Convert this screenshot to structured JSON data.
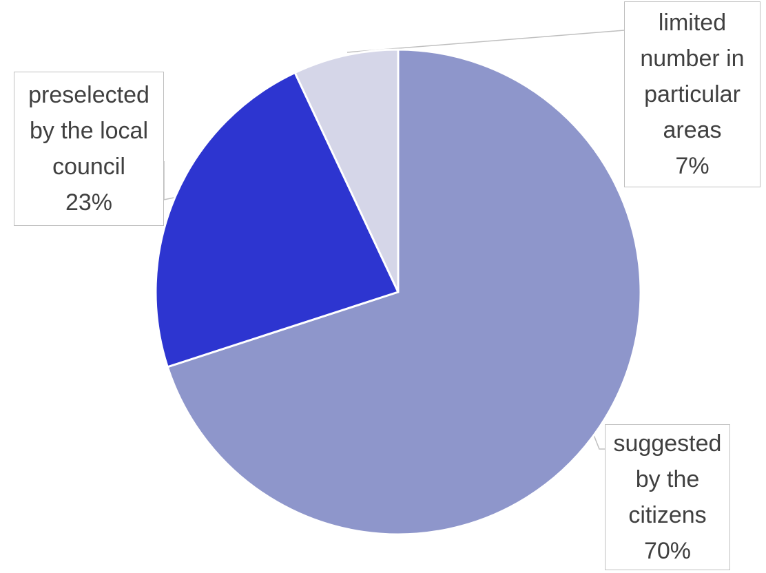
{
  "chart_data": {
    "type": "pie",
    "start_angle_deg": 0,
    "direction": "clockwise",
    "slices": [
      {
        "label_lines": [
          "suggested",
          "by the",
          "citizens"
        ],
        "percent_label": "70%",
        "value": 70,
        "color": "#8e96cb"
      },
      {
        "label_lines": [
          "preselected",
          "by the local",
          "council"
        ],
        "percent_label": "23%",
        "value": 23,
        "color": "#2d35d0"
      },
      {
        "label_lines": [
          "limited",
          "number in",
          "particular",
          "areas"
        ],
        "percent_label": "7%",
        "value": 7,
        "color": "#d5d6e8"
      }
    ],
    "slice_border_color": "#ffffff",
    "label_border_color": "#bfbfbf",
    "leader_line_color": "#bfbfbf",
    "legend": "none"
  }
}
